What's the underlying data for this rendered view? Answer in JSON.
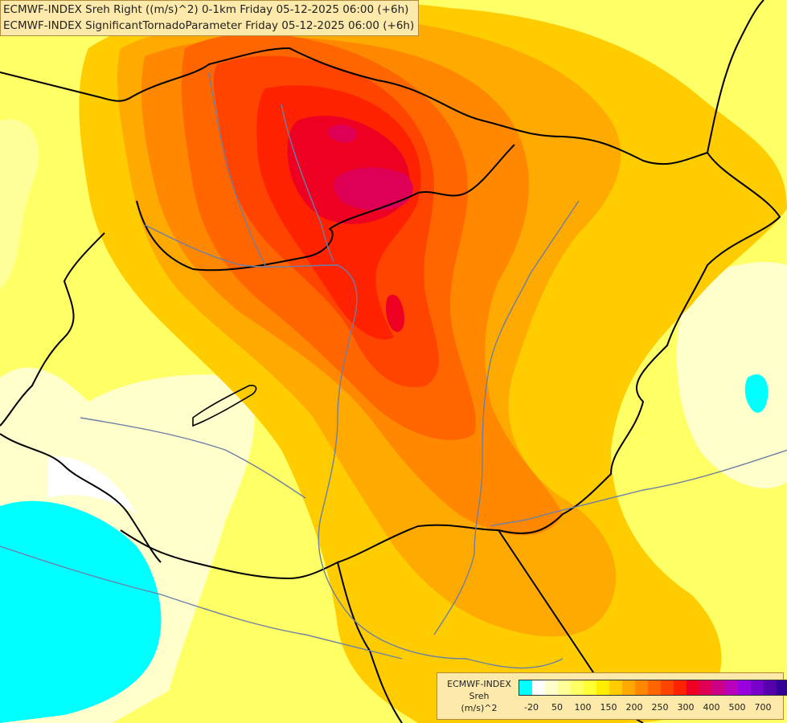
{
  "header": {
    "line1": "ECMWF-INDEX Sreh Right ((m/s)^2) 0-1km Friday 05-12-2025 06:00 (+6h)",
    "line2": "ECMWF-INDEX SignificantTornadoParameter Friday 05-12-2025 06:00 (+6h)"
  },
  "legend": {
    "title1": "ECMWF-INDEX",
    "title2": "Sreh",
    "title3": "(m/s)^2",
    "colors": [
      "#00ffff",
      "#ffffff",
      "#ffffcc",
      "#ffff99",
      "#ffff66",
      "#ffff33",
      "#ffee00",
      "#ffcc00",
      "#ffaa00",
      "#ff8800",
      "#ff6600",
      "#ff4400",
      "#ff2200",
      "#ee0022",
      "#dd0055",
      "#cc0088",
      "#bb00bb",
      "#9900dd",
      "#7700cc",
      "#5500aa",
      "#330099",
      "#110077"
    ],
    "tick_labels": [
      "-20",
      "50",
      "100",
      "150",
      "200",
      "250",
      "300",
      "400",
      "500",
      "700"
    ]
  },
  "map": {
    "colors": {
      "background": "#ffff66",
      "pale": "#ffffcc",
      "light_yellow": "#ffff99",
      "yellow": "#ffee00",
      "gold": "#ffcc00",
      "orange": "#ffaa00",
      "dark_orange": "#ff8800",
      "red_orange": "#ff6600",
      "red": "#ff4400",
      "deep_red": "#ff2200",
      "crimson": "#ee0022",
      "magenta": "#dd0055",
      "cyan": "#00ffff",
      "white": "#ffffff",
      "border": "#000000",
      "river": "#6b7fa6"
    }
  }
}
